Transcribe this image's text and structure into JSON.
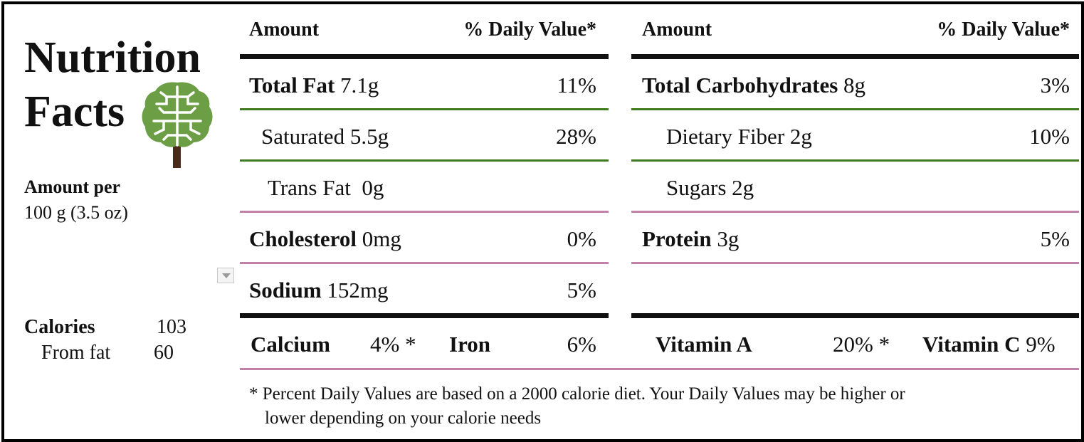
{
  "title": {
    "line1": "Nutrition",
    "line2": "Facts"
  },
  "serving": {
    "label": "Amount per",
    "size": "100 g (3.5 oz)"
  },
  "calories": {
    "label": "Calories",
    "value": "103",
    "from_fat_label": "From fat",
    "from_fat_value": "60"
  },
  "icon": {
    "name": "tree-brain-icon",
    "canopy_color": "#6b9e45",
    "trunk_color": "#4a2a1a"
  },
  "colors": {
    "green_rule": "#3f7a1c",
    "pink_rule": "#c080a8",
    "black_rule": "#111111"
  },
  "left_table": {
    "header_amount": "Amount",
    "header_dv": "% Daily Value*",
    "rows": [
      {
        "name": "Total Fat",
        "amount": "7.1g",
        "dv": "11%"
      },
      {
        "name": "Saturated",
        "amount": "5.5g",
        "dv": "28%"
      },
      {
        "name": "Trans Fat",
        "amount": "0g",
        "dv": ""
      },
      {
        "name": "Cholesterol",
        "amount": "0mg",
        "dv": "0%"
      },
      {
        "name": "Sodium",
        "amount": "152mg",
        "dv": "5%"
      }
    ]
  },
  "right_table": {
    "header_amount": "Amount",
    "header_dv": "% Daily Value*",
    "rows": [
      {
        "name": "Total Carbohydrates",
        "amount": "8g",
        "dv": "3%"
      },
      {
        "name": "Dietary Fiber",
        "amount": "2g",
        "dv": "10%"
      },
      {
        "name": "Sugars",
        "amount": "2g",
        "dv": ""
      },
      {
        "name": "Protein",
        "amount": "3g",
        "dv": "5%"
      }
    ]
  },
  "vitamins": {
    "calcium_label": "Calcium",
    "calcium_value": "4% *",
    "iron_label": "Iron",
    "iron_value": "6%",
    "vitamin_a_label": "Vitamin A",
    "vitamin_a_value": "20% *",
    "vitamin_c_label": "Vitamin C",
    "vitamin_c_value": "9%"
  },
  "footnote": {
    "line1": "* Percent Daily Values are based on a 2000 calorie diet. Your Daily Values may be higher or",
    "line2": "lower depending on your calorie needs"
  }
}
